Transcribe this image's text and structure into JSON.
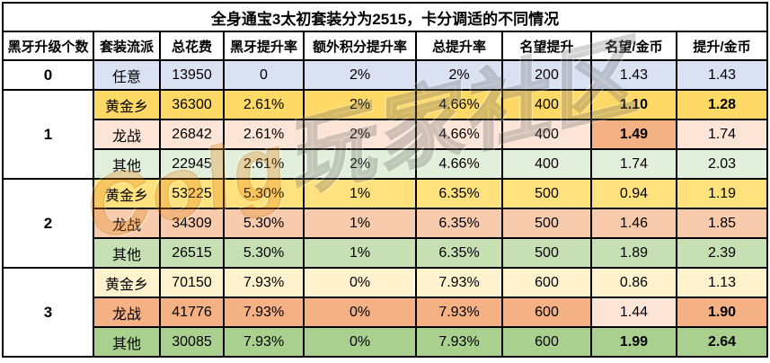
{
  "title": "全身通宝3太初套装分为2515，卡分调适的不同情况",
  "columns": [
    "黑牙升级个数",
    "套装流派",
    "总花费",
    "黑牙提升率",
    "额外积分提升率",
    "总提升率",
    "名望提升",
    "名望/金币",
    "提升/金币"
  ],
  "palette": {
    "blue_any": "#D9E1F2",
    "gold_1": "#FFD966",
    "gold_2": "#FFE27D",
    "gold_3": "#FFF2CC",
    "orange_1": "#FCE4D6",
    "orange_2": "#F8CBAD",
    "orange_3": "#F4B183",
    "green_1": "#E2EFDA",
    "green_2": "#C6E0B4",
    "green_3": "#A9D08E",
    "border": "#000000",
    "header_bg": "#FFFFFF",
    "watermark_orange": "#E8891A",
    "watermark_gray": "#9A9A9A"
  },
  "groups": [
    {
      "count": "0",
      "rows": [
        {
          "bg": "blue_any",
          "cells": [
            "任意",
            "13950",
            "0",
            "2%",
            "2%",
            "200",
            "1.43",
            "1.43"
          ],
          "bold": [],
          "cell_bg": {}
        }
      ]
    },
    {
      "count": "1",
      "rows": [
        {
          "bg": "gold_1",
          "cells": [
            "黄金乡",
            "36300",
            "2.61%",
            "2%",
            "4.66%",
            "400",
            "1.10",
            "1.28"
          ],
          "bold": [
            6,
            7
          ],
          "cell_bg": {}
        },
        {
          "bg": "orange_1",
          "cells": [
            "龙战",
            "26842",
            "2.61%",
            "2%",
            "4.66%",
            "400",
            "1.49",
            "1.74"
          ],
          "bold": [
            6
          ],
          "cell_bg": {
            "6": "orange_3"
          }
        },
        {
          "bg": "green_1",
          "cells": [
            "其他",
            "22945",
            "2.61%",
            "2%",
            "4.66%",
            "400",
            "1.74",
            "2.03"
          ],
          "bold": [],
          "cell_bg": {}
        }
      ]
    },
    {
      "count": "2",
      "rows": [
        {
          "bg": "gold_2",
          "cells": [
            "黄金乡",
            "53225",
            "5.30%",
            "1%",
            "6.35%",
            "500",
            "0.94",
            "1.19"
          ],
          "bold": [],
          "cell_bg": {}
        },
        {
          "bg": "orange_2",
          "cells": [
            "龙战",
            "34309",
            "5.30%",
            "1%",
            "6.35%",
            "500",
            "1.46",
            "1.85"
          ],
          "bold": [],
          "cell_bg": {}
        },
        {
          "bg": "green_2",
          "cells": [
            "其他",
            "26515",
            "5.30%",
            "1%",
            "6.35%",
            "500",
            "1.89",
            "2.39"
          ],
          "bold": [],
          "cell_bg": {}
        }
      ]
    },
    {
      "count": "3",
      "rows": [
        {
          "bg": "gold_3",
          "cells": [
            "黄金乡",
            "70150",
            "7.93%",
            "0%",
            "7.93%",
            "600",
            "0.86",
            "1.13"
          ],
          "bold": [],
          "cell_bg": {}
        },
        {
          "bg": "orange_3",
          "cells": [
            "龙战",
            "41776",
            "7.93%",
            "0%",
            "7.93%",
            "600",
            "1.44",
            "1.90"
          ],
          "bold": [
            7
          ],
          "cell_bg": {
            "6": "orange_1"
          }
        },
        {
          "bg": "green_3",
          "cells": [
            "其他",
            "30085",
            "7.93%",
            "0%",
            "7.93%",
            "600",
            "1.99",
            "2.64"
          ],
          "bold": [
            6,
            7
          ],
          "cell_bg": {}
        }
      ]
    }
  ],
  "watermark": {
    "part1": "Colg",
    "part2": "玩家社区"
  },
  "chart_data": {
    "type": "table",
    "title": "全身通宝3太初套装分为2515，卡分调适的不同情况",
    "columns": [
      "黑牙升级个数",
      "套装流派",
      "总花费",
      "黑牙提升率",
      "额外积分提升率",
      "总提升率",
      "名望提升",
      "名望/金币",
      "提升/金币"
    ],
    "rows": [
      [
        "0",
        "任意",
        "13950",
        "0",
        "2%",
        "2%",
        "200",
        "1.43",
        "1.43"
      ],
      [
        "1",
        "黄金乡",
        "36300",
        "2.61%",
        "2%",
        "4.66%",
        "400",
        "1.10",
        "1.28"
      ],
      [
        "1",
        "龙战",
        "26842",
        "2.61%",
        "2%",
        "4.66%",
        "400",
        "1.49",
        "1.74"
      ],
      [
        "1",
        "其他",
        "22945",
        "2.61%",
        "2%",
        "4.66%",
        "400",
        "1.74",
        "2.03"
      ],
      [
        "2",
        "黄金乡",
        "53225",
        "5.30%",
        "1%",
        "6.35%",
        "500",
        "0.94",
        "1.19"
      ],
      [
        "2",
        "龙战",
        "34309",
        "5.30%",
        "1%",
        "6.35%",
        "500",
        "1.46",
        "1.85"
      ],
      [
        "2",
        "其他",
        "26515",
        "5.30%",
        "1%",
        "6.35%",
        "500",
        "1.89",
        "2.39"
      ],
      [
        "3",
        "黄金乡",
        "70150",
        "7.93%",
        "0%",
        "7.93%",
        "600",
        "0.86",
        "1.13"
      ],
      [
        "3",
        "龙战",
        "41776",
        "7.93%",
        "0%",
        "7.93%",
        "600",
        "1.44",
        "1.90"
      ],
      [
        "3",
        "其他",
        "30085",
        "7.93%",
        "0%",
        "7.93%",
        "600",
        "1.99",
        "2.64"
      ]
    ]
  }
}
